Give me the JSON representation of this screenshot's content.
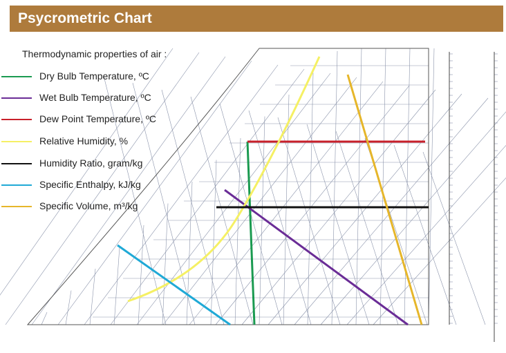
{
  "header": {
    "title": "Psycrometric Chart"
  },
  "legend": {
    "heading": "Thermodynamic properties of air :",
    "items": [
      {
        "label": "Dry Bulb Temperature, ºC"
      },
      {
        "label": "Wet Bulb Temperature, ºC"
      },
      {
        "label": "Dew Point Temperature, ºC"
      },
      {
        "label": "Relative Humidity, %"
      },
      {
        "label": "Humidity Ratio, gram/kg"
      },
      {
        "label": "Specific Enthalpy, kJ/kg"
      },
      {
        "label": "Specific Volume, m³/kg"
      }
    ]
  }
}
